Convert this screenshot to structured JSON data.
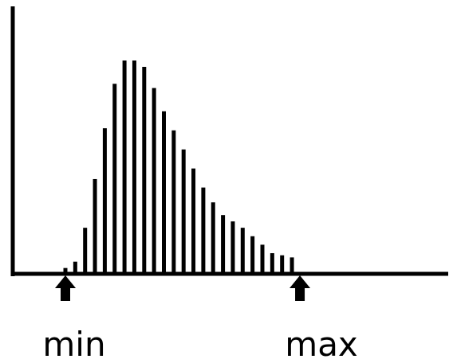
{
  "chart_data": {
    "type": "bar",
    "values": [
      2,
      5,
      21,
      44,
      68,
      89,
      100,
      100,
      97,
      87,
      76,
      67,
      58,
      49,
      40,
      33,
      27,
      24,
      21,
      17,
      13,
      9,
      8,
      7
    ],
    "ylim": [
      0,
      100
    ],
    "grid": false,
    "color": "#000000",
    "markers": {
      "min": {
        "label": "min",
        "bar_index": 0
      },
      "max": {
        "label": "max",
        "bar_index": 23
      }
    }
  }
}
